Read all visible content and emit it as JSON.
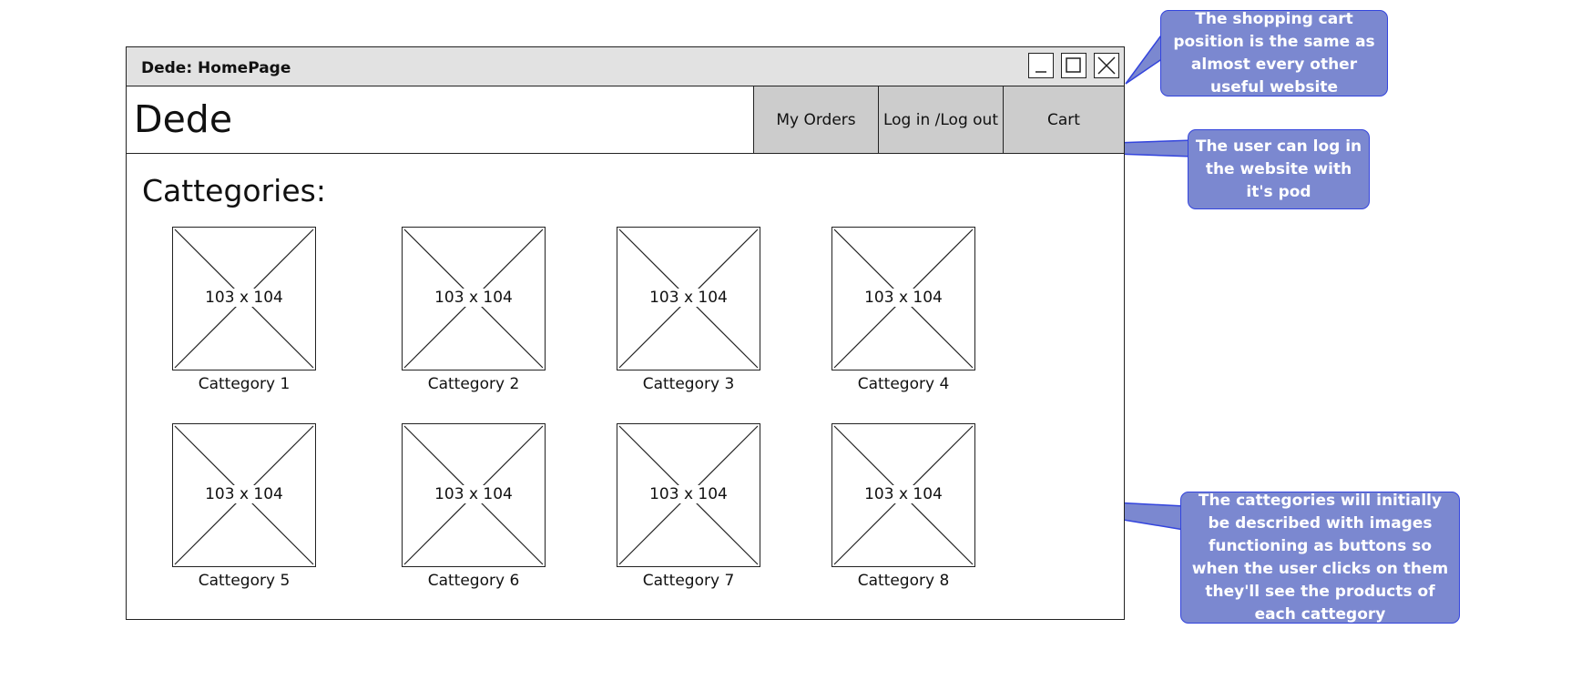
{
  "window": {
    "title": "Dede: HomePage",
    "controls": [
      "minimize-icon",
      "maximize-icon",
      "close-icon"
    ]
  },
  "header": {
    "brand": "Dede",
    "nav": [
      {
        "label": "My Orders"
      },
      {
        "label": "Log in /Log out"
      },
      {
        "label": "Cart"
      }
    ]
  },
  "main": {
    "section_title": "Cattegories:",
    "categories": [
      {
        "label": "Cattegory 1",
        "image_size": "103 x 104"
      },
      {
        "label": "Cattegory 2",
        "image_size": "103 x 104"
      },
      {
        "label": "Cattegory 3",
        "image_size": "103 x 104"
      },
      {
        "label": "Cattegory 4",
        "image_size": "103 x 104"
      },
      {
        "label": "Cattegory 5",
        "image_size": "103 x 104"
      },
      {
        "label": "Cattegory 6",
        "image_size": "103 x 104"
      },
      {
        "label": "Cattegory 7",
        "image_size": "103 x 104"
      },
      {
        "label": "Cattegory 8",
        "image_size": "103 x 104"
      }
    ]
  },
  "annotations": [
    {
      "text": "The shopping cart position is the same as almost every other useful website"
    },
    {
      "text": "The user can log in the website with it's pod"
    },
    {
      "text": "The cattegories will initially be described with images functioning as buttons so when the user clicks on them they'll see the products of each cattegory"
    }
  ],
  "colors": {
    "callout_fill": "#7b88d0",
    "callout_border": "#3344dd",
    "nav_button": "#cccccc",
    "titlebar": "#e2e2e2"
  }
}
